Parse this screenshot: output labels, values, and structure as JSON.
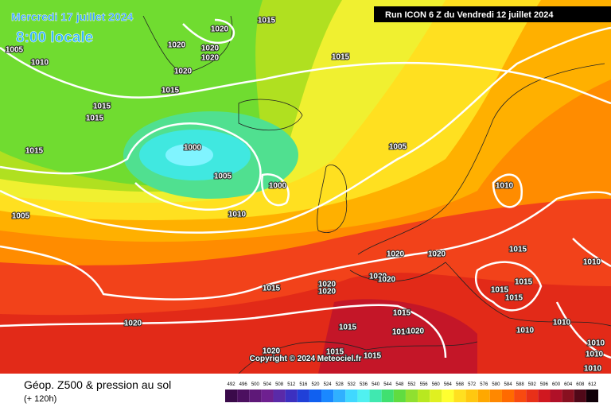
{
  "header": {
    "date": "Mercredi 17 juillet 2024",
    "time": "8:00 locale",
    "run": "Run ICON 6 Z du Vendredi 12 juillet 2024"
  },
  "copyright": "Copyright © 2024 Meteociel.fr",
  "footer": {
    "title": "Géop. Z500 & pression au sol",
    "lead": "(+ 120h)"
  },
  "isobar_labels": [
    1015,
    1020,
    1005,
    1010,
    1020,
    1020,
    1020,
    1020,
    1015,
    1015,
    1015,
    1015,
    1015,
    1000,
    1005,
    1000,
    1010,
    1005,
    1005,
    1010,
    1020,
    1020,
    1015,
    1010,
    1020,
    1020,
    1020,
    1020,
    1015,
    1015,
    1015,
    1015,
    1015,
    1015,
    1010,
    1020,
    1010,
    1010,
    1020,
    1020,
    1015,
    1015,
    1010,
    1010,
    1010
  ],
  "legend": {
    "labels": [
      492,
      496,
      500,
      504,
      508,
      512,
      516,
      520,
      524,
      528,
      532,
      536,
      540,
      544,
      548,
      552,
      556,
      560,
      564,
      568,
      572,
      576,
      580,
      584,
      588,
      592,
      596,
      600,
      604,
      608,
      612
    ],
    "colors": [
      "#3a0a4a",
      "#4c1060",
      "#5e1878",
      "#6e2090",
      "#5a2aa8",
      "#3c30c0",
      "#2040d8",
      "#1060f0",
      "#1a88ff",
      "#30b0ff",
      "#40d8ff",
      "#50f0f0",
      "#40e8b0",
      "#40e070",
      "#60dc40",
      "#90e030",
      "#b8e820",
      "#e0f020",
      "#ffff30",
      "#ffe020",
      "#ffc810",
      "#ffa800",
      "#ff8800",
      "#ff6a00",
      "#f84a10",
      "#e83018",
      "#d01820",
      "#b01028",
      "#881020",
      "#500818",
      "#100008"
    ]
  }
}
